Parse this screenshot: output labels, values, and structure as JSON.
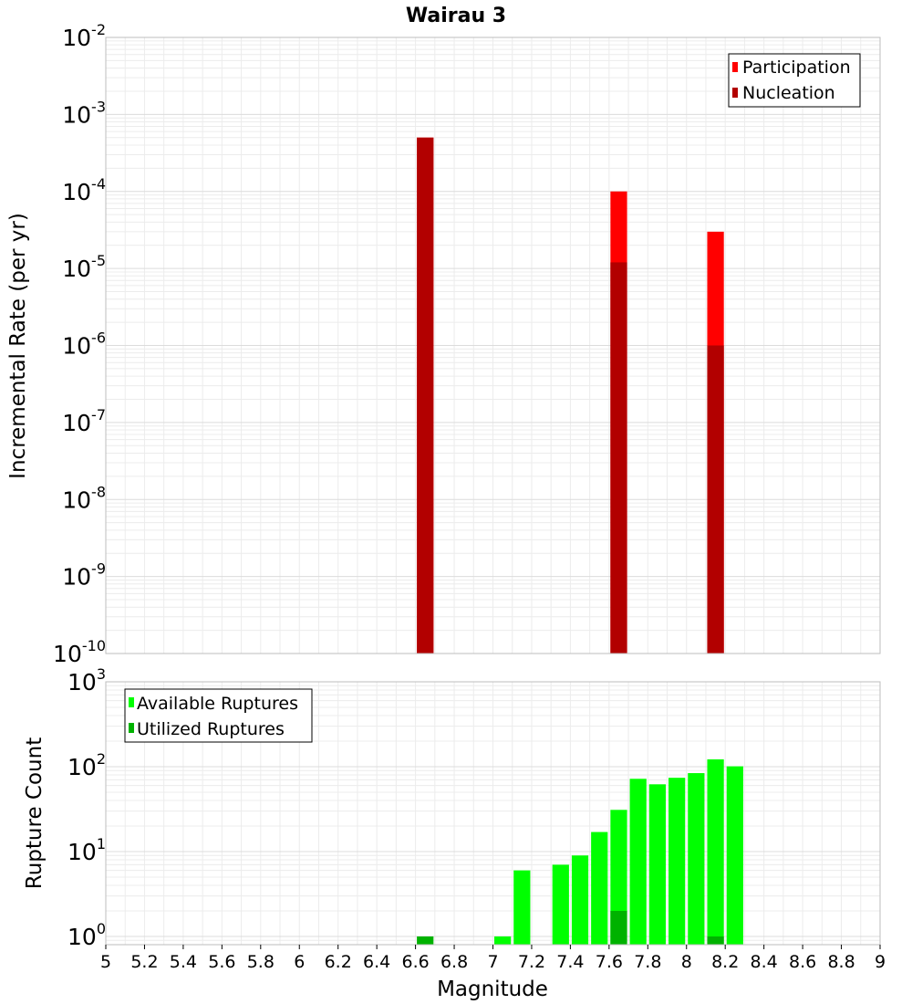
{
  "chart_data": [
    {
      "type": "bar",
      "title": "Wairau 3",
      "xlabel": "",
      "ylabel": "Incremental Rate (per yr)",
      "xlim": [
        5,
        9
      ],
      "ylim": [
        1e-10,
        0.01
      ],
      "yscale": "log",
      "grid": true,
      "legend_position": "top-right",
      "series": [
        {
          "name": "Participation",
          "color": "#ff0000",
          "bin_width": 0.1,
          "x": [
            6.65,
            7.65,
            8.15
          ],
          "values": [
            0.0005,
            0.0001,
            3e-05
          ]
        },
        {
          "name": "Nucleation",
          "color": "#b20000",
          "bin_width": 0.1,
          "x": [
            6.65,
            7.65,
            8.15
          ],
          "values": [
            0.0005,
            1.2e-05,
            1e-06
          ]
        }
      ],
      "y_ticks": [
        {
          "base": "10",
          "exp": "-2"
        },
        {
          "base": "10",
          "exp": "-3"
        },
        {
          "base": "10",
          "exp": "-4"
        },
        {
          "base": "10",
          "exp": "-5"
        },
        {
          "base": "10",
          "exp": "-6"
        },
        {
          "base": "10",
          "exp": "-7"
        },
        {
          "base": "10",
          "exp": "-8"
        },
        {
          "base": "10",
          "exp": "-9"
        },
        {
          "base": "10",
          "exp": "-10"
        }
      ]
    },
    {
      "type": "bar",
      "title": "",
      "xlabel": "Magnitude",
      "ylabel": "Rupture Count",
      "xlim": [
        5,
        9
      ],
      "ylim": [
        0.8,
        1000
      ],
      "yscale": "log",
      "grid": true,
      "legend_position": "top-left",
      "x_ticks": [
        "5",
        "5.2",
        "5.4",
        "5.6",
        "5.8",
        "6",
        "6.2",
        "6.4",
        "6.6",
        "6.8",
        "7",
        "7.2",
        "7.4",
        "7.6",
        "7.8",
        "8",
        "8.2",
        "8.4",
        "8.6",
        "8.8",
        "9"
      ],
      "series": [
        {
          "name": "Available Ruptures",
          "color": "#00ff00",
          "bin_width": 0.1,
          "x": [
            7.05,
            7.15,
            7.35,
            7.45,
            7.55,
            7.65,
            7.75,
            7.85,
            7.95,
            8.05,
            8.15,
            8.25
          ],
          "values": [
            1,
            6,
            7,
            9,
            17,
            31,
            72,
            62,
            74,
            84,
            122,
            101
          ]
        },
        {
          "name": "Utilized Ruptures",
          "color": "#00b200",
          "bin_width": 0.1,
          "x": [
            6.65,
            7.65,
            8.15
          ],
          "values": [
            1,
            2,
            1
          ]
        }
      ],
      "y_ticks": [
        {
          "base": "10",
          "exp": "3"
        },
        {
          "base": "10",
          "exp": "2"
        },
        {
          "base": "10",
          "exp": "1"
        },
        {
          "base": "10",
          "exp": "0"
        }
      ]
    }
  ]
}
